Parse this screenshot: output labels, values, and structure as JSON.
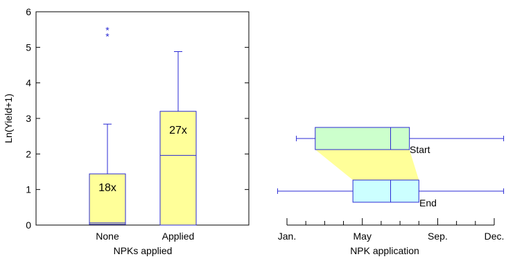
{
  "chart_data": [
    {
      "type": "box",
      "xlabel": "NPKs applied",
      "ylabel": "Ln(Yield+1)",
      "ylim": [
        0,
        6
      ],
      "yticks": [
        0,
        1,
        2,
        3,
        4,
        5,
        6
      ],
      "categories": [
        "None",
        "Applied"
      ],
      "boxes": [
        {
          "category": "None",
          "min": 0,
          "q1": 0.02,
          "median": 0.06,
          "q3": 1.44,
          "max": 2.84,
          "outliers": [
            5.35,
            5.52
          ],
          "count_label": "18x"
        },
        {
          "category": "Applied",
          "min": 0,
          "q1": 0,
          "median": 1.96,
          "q3": 3.2,
          "max": 4.88,
          "outliers": [],
          "count_label": "27x"
        }
      ],
      "colors": {
        "box_fill": "#ffff99",
        "box_stroke": "#2a2ad4",
        "outlier": "#2a2ad4"
      }
    },
    {
      "type": "box",
      "orientation": "horizontal",
      "xlabel": "NPK application",
      "xlim": [
        1,
        12
      ],
      "xticks": [
        "Jan.",
        "May",
        "Sep.",
        "Dec."
      ],
      "boxes": [
        {
          "label": "Start",
          "min": 1.5,
          "q1": 2.5,
          "median": 6.5,
          "q3": 7.5,
          "max": 12.5
        },
        {
          "label": "End",
          "min": 0.5,
          "q1": 4.5,
          "median": 6.5,
          "q3": 8,
          "max": 12.5
        }
      ],
      "colors": {
        "start_fill": "#ccffcc",
        "end_fill": "#ccffff",
        "link_fill": "#ffff99",
        "box_stroke": "#2a2ad4"
      }
    }
  ]
}
